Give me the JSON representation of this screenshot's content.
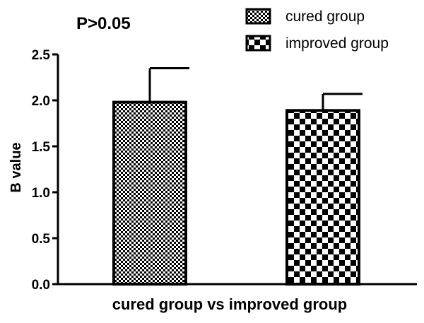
{
  "chart_data": {
    "type": "bar",
    "annotation": "P>0.05",
    "title": "",
    "xlabel": "cured group vs improved group",
    "ylabel": "B value",
    "ylim": [
      0,
      2.5
    ],
    "yticks": [
      "0.0",
      "0.5",
      "1.0",
      "1.5",
      "2.0",
      "2.5"
    ],
    "grid": false,
    "legend_position": "top-right",
    "series": [
      {
        "name": "cured group",
        "value": 1.98,
        "error": 0.37,
        "pattern": "fine-checker",
        "color": "#000000"
      },
      {
        "name": "improved group",
        "value": 1.89,
        "error": 0.18,
        "pattern": "coarse-checker",
        "color": "#000000"
      }
    ]
  }
}
